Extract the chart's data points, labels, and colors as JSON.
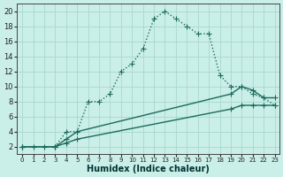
{
  "xlabel": "Humidex (Indice chaleur)",
  "bg_color": "#caeee8",
  "grid_color": "#a8d8d0",
  "line_color": "#1a6b5a",
  "xlim_min": -0.5,
  "xlim_max": 23.4,
  "ylim_min": 1.0,
  "ylim_max": 21.0,
  "xticks": [
    0,
    1,
    2,
    3,
    4,
    5,
    6,
    7,
    8,
    9,
    10,
    11,
    12,
    13,
    14,
    15,
    16,
    17,
    18,
    19,
    20,
    21,
    22,
    23
  ],
  "yticks": [
    2,
    4,
    6,
    8,
    10,
    12,
    14,
    16,
    18,
    20
  ],
  "curve_x": [
    0,
    1,
    2,
    3,
    4,
    5,
    6,
    7,
    8,
    9,
    10,
    11,
    12,
    13,
    14,
    15,
    16,
    17,
    18,
    19,
    20,
    21,
    22,
    23
  ],
  "curve_y": [
    2,
    2,
    2,
    2,
    4,
    4,
    8,
    8,
    9,
    12,
    13,
    15,
    19,
    20,
    19,
    18,
    17,
    17,
    11.5,
    10,
    10,
    9,
    8.5,
    7.5
  ],
  "upper_x": [
    0,
    3,
    4,
    5,
    19,
    20,
    21,
    22,
    23
  ],
  "upper_y": [
    2,
    2,
    3,
    4,
    9,
    10,
    9.5,
    8.5,
    8.5
  ],
  "lower_x": [
    0,
    3,
    4,
    5,
    19,
    20,
    21,
    22,
    23
  ],
  "lower_y": [
    2,
    2,
    2.5,
    3,
    7,
    7.5,
    7.5,
    7.5,
    7.5
  ],
  "linewidth": 1.0,
  "markersize": 2.8,
  "xlabel_fontsize": 7,
  "tick_fontsize_x": 5,
  "tick_fontsize_y": 6
}
